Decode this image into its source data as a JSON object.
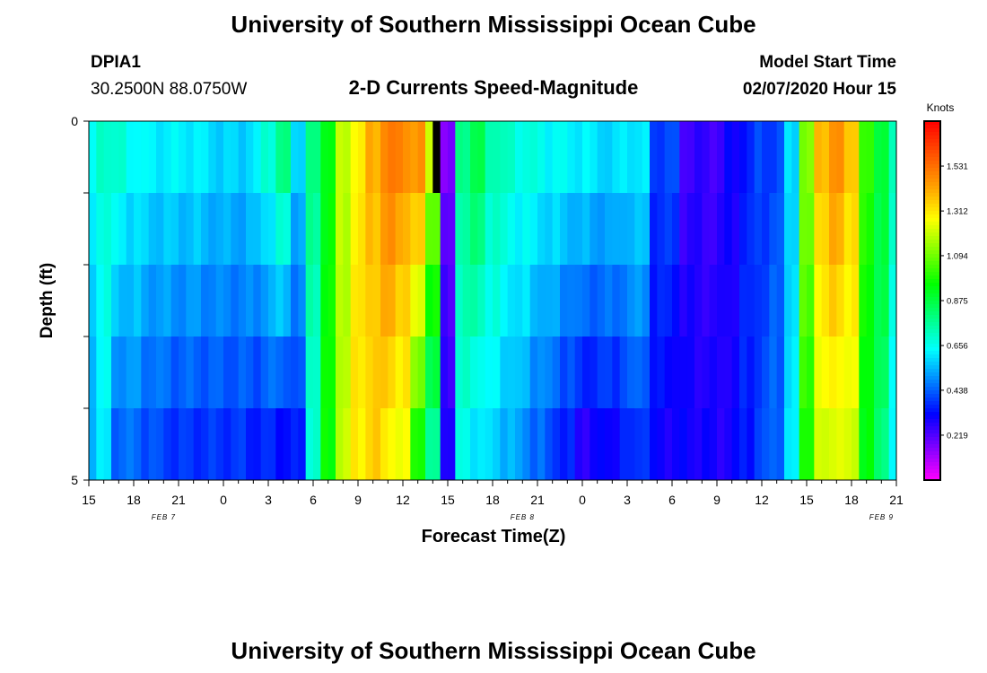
{
  "page": {
    "title": "University of Southern Mississippi Ocean Cube",
    "title_repeat": "University of Southern Mississippi Ocean Cube",
    "station_id": "DPIA1",
    "station_coords": "30.2500N 88.0750W",
    "subtitle": "2-D Currents Speed-Magnitude",
    "model_start_label": "Model Start Time",
    "model_start_value": "02/07/2020 Hour 15"
  },
  "chart_data": {
    "type": "heatmap",
    "title": "2-D Currents Speed-Magnitude",
    "xlabel": "Forecast Time(Z)",
    "ylabel": "Depth (ft)",
    "ylim": [
      0,
      5
    ],
    "y_tick_labels": [
      "0",
      "5"
    ],
    "x_tick_labels": [
      "15",
      "18",
      "21",
      "0",
      "3",
      "6",
      "9",
      "12",
      "15",
      "18",
      "21",
      "0",
      "3",
      "6",
      "9",
      "12",
      "15",
      "18",
      "21"
    ],
    "date_labels": [
      {
        "text": "FEB 7",
        "hour_index": 5
      },
      {
        "text": "FEB 8",
        "hour_index": 29
      },
      {
        "text": "FEB 9",
        "hour_index": 53
      }
    ],
    "units": "Knots",
    "colorbar_ticks": [
      "1.531",
      "1.312",
      "1.094",
      "0.875",
      "0.656",
      "0.438",
      "0.219"
    ],
    "colorbar_tick_values": [
      1.531,
      1.312,
      1.094,
      0.875,
      0.656,
      0.438,
      0.219
    ],
    "value_range": [
      0.0,
      1.75
    ],
    "depth_rows": [
      0.5,
      1.5,
      2.5,
      3.5,
      4.5
    ],
    "hours_start": 0,
    "hours_end": 54,
    "missing_cells": [
      {
        "hour": 23,
        "row": 0
      }
    ],
    "colors": {
      "missing": "#000000",
      "background": "#ffffff",
      "scale": [
        "#ff00ff",
        "#8000ff",
        "#0000ff",
        "#0080ff",
        "#00ffff",
        "#00ff80",
        "#00ff00",
        "#80ff00",
        "#ffff00",
        "#ffa000",
        "#ff5000",
        "#ff0000"
      ]
    },
    "speed_profile_surface": [
      0.62,
      0.72,
      0.68,
      0.65,
      0.62,
      0.62,
      0.62,
      0.62,
      0.6,
      0.58,
      0.58,
      0.6,
      0.7,
      0.78,
      0.6,
      0.78,
      0.95,
      1.18,
      1.3,
      1.4,
      1.5,
      1.48,
      1.45,
      1.2,
      0.15,
      0.8,
      0.85,
      0.75,
      0.7,
      0.68,
      0.66,
      0.64,
      0.63,
      0.62,
      0.6,
      0.58,
      0.62,
      0.6,
      0.4,
      0.4,
      0.25,
      0.25,
      0.25,
      0.3,
      0.35,
      0.4,
      0.4,
      0.6,
      1.1,
      1.4,
      1.45,
      1.38,
      1.0,
      0.9,
      0.7
    ],
    "speed_profile_bottom": [
      0.55,
      0.6,
      0.45,
      0.45,
      0.42,
      0.4,
      0.38,
      0.38,
      0.38,
      0.38,
      0.38,
      0.36,
      0.36,
      0.34,
      0.34,
      0.7,
      0.95,
      1.2,
      1.3,
      1.35,
      1.3,
      1.25,
      1.0,
      0.75,
      0.3,
      0.65,
      0.62,
      0.58,
      0.55,
      0.5,
      0.45,
      0.4,
      0.35,
      0.28,
      0.3,
      0.32,
      0.35,
      0.4,
      0.3,
      0.3,
      0.3,
      0.3,
      0.28,
      0.3,
      0.35,
      0.4,
      0.45,
      0.6,
      1.0,
      1.2,
      1.25,
      1.2,
      0.95,
      0.8,
      0.65
    ]
  }
}
